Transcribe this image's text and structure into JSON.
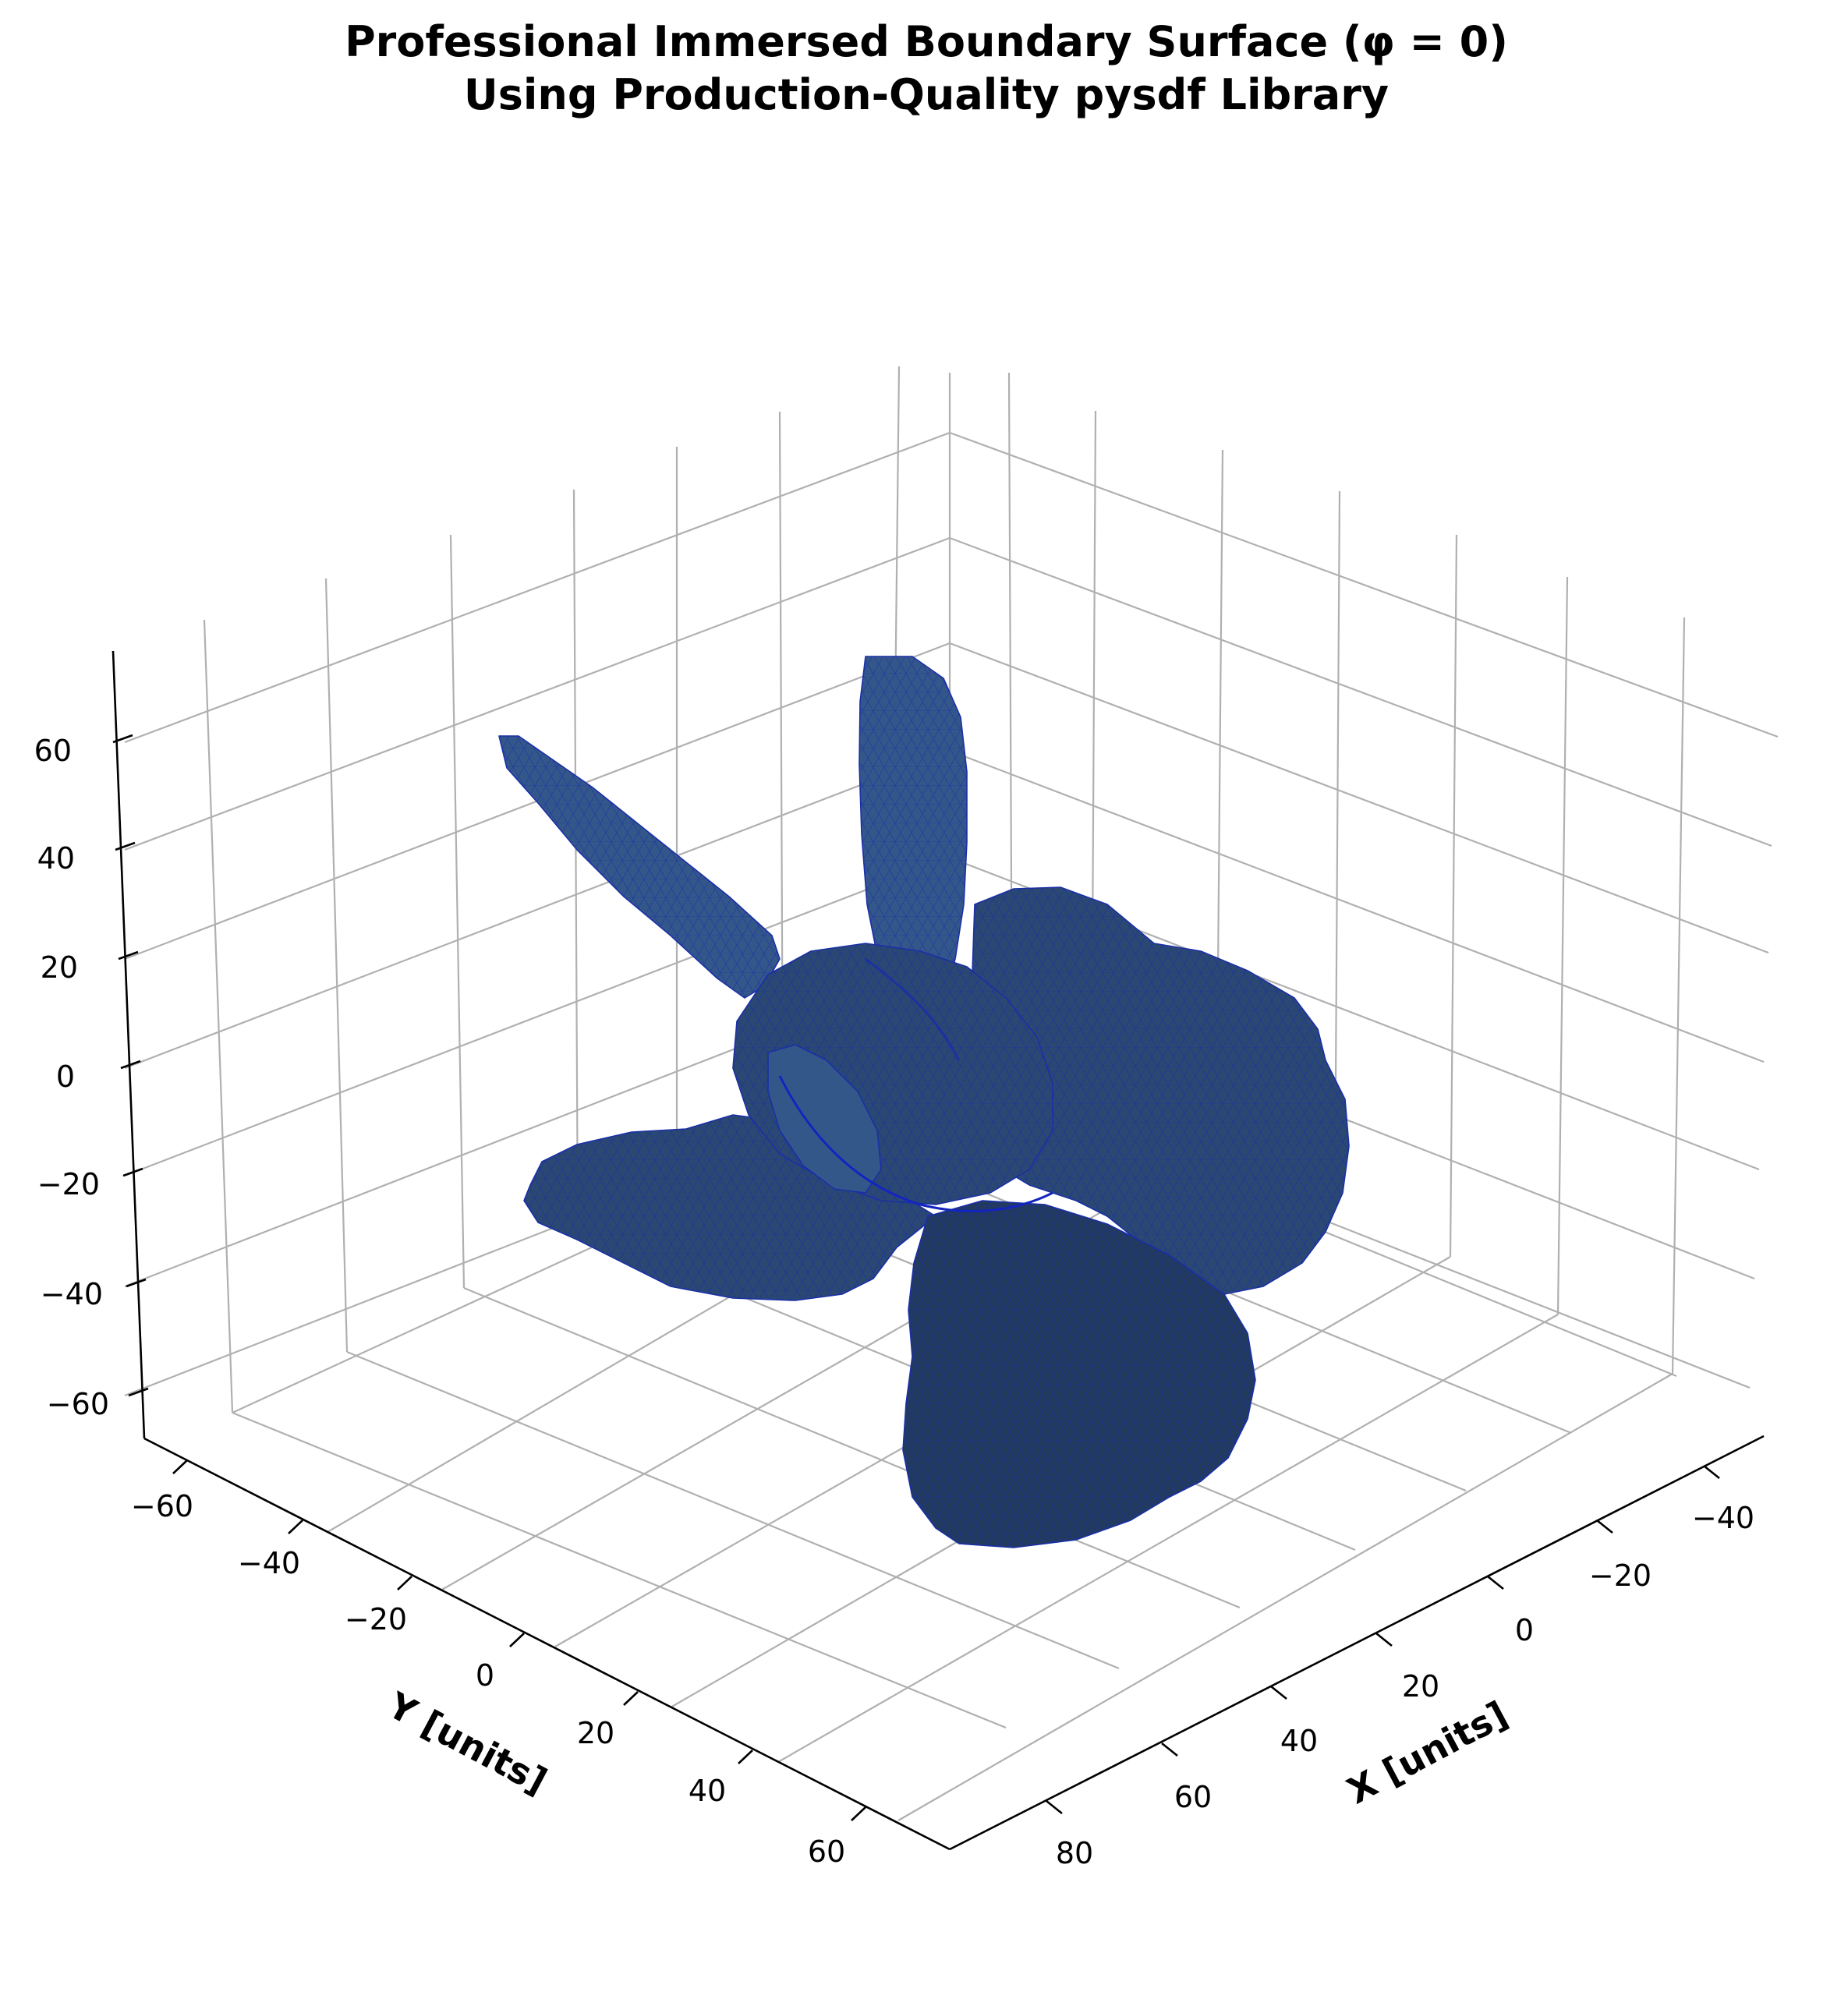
{
  "chart_data": {
    "type": "3d-surface",
    "title_line1": "Professional Immersed Boundary Surface (φ = 0)",
    "title_line2": "Using Production-Quality pysdf Library",
    "xlabel": "X [units]",
    "ylabel": "Y [units]",
    "zlabel": "",
    "x_ticks": [
      "−40",
      "−20",
      "0",
      "20",
      "40",
      "60",
      "80"
    ],
    "y_ticks": [
      "−60",
      "−40",
      "−20",
      "0",
      "20",
      "40",
      "60"
    ],
    "z_ticks": [
      "60",
      "40",
      "20",
      "0",
      "−20",
      "−40",
      "−60"
    ],
    "x_range": [
      -45,
      85
    ],
    "y_range": [
      -70,
      70
    ],
    "z_range": [
      -70,
      70
    ],
    "grid": true,
    "surface_color": "#2a4872",
    "edge_color": "#1a2fa8",
    "description": "Isosurface mesh of a three-bladed propeller-like body with a central hub"
  }
}
